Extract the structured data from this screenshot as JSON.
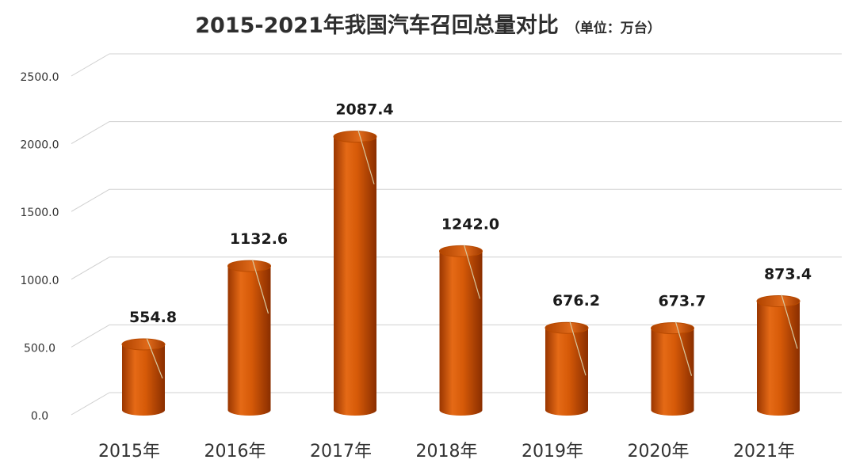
{
  "chart_data": {
    "type": "bar",
    "title": "2015-2021年我国汽车召回总量对比",
    "unit_note": "（单位：万台）",
    "categories": [
      "2015年",
      "2016年",
      "2017年",
      "2018年",
      "2019年",
      "2020年",
      "2021年"
    ],
    "values": [
      554.8,
      1132.6,
      2087.4,
      1242.0,
      676.2,
      673.7,
      873.4
    ],
    "data_labels": [
      "554.8",
      "1132.6",
      "2087.4",
      "1242.0",
      "676.2",
      "673.7",
      "873.4"
    ],
    "y_ticks": [
      "0.0",
      "500.0",
      "1000.0",
      "1500.0",
      "2000.0",
      "2500.0"
    ],
    "ylim": [
      0,
      2500
    ],
    "grid": true,
    "legend": false,
    "bar_shape": "cylinder",
    "colors": {
      "bar": "#d65a08",
      "bar_dark": "#8a2e00",
      "bar_light": "#f08a3c",
      "grid": "#d0d0d0"
    }
  }
}
